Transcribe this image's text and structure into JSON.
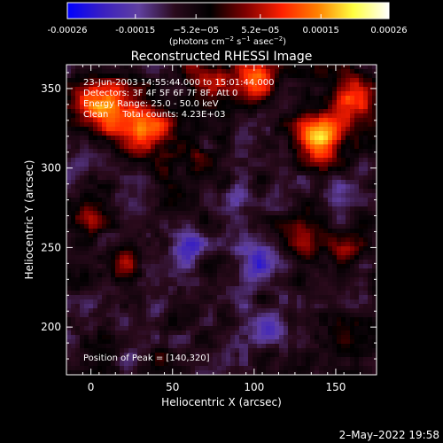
{
  "colorbar": {
    "tick_labels": [
      "-0.00026",
      "-0.00015",
      "−5.2e−05",
      "5.2e−05",
      "0.00015",
      "0.00026"
    ],
    "tick_values": [
      -0.00026,
      -0.00015,
      -5.2e-05,
      5.2e-05,
      0.00015,
      0.00026
    ],
    "range": [
      -0.00026,
      0.00026
    ],
    "units_base": "(photons cm",
    "units_exp1": "−2",
    "units_mid": " s",
    "units_exp2": "−1",
    "units_mid2": " asec",
    "units_exp3": "−2",
    "units_end": ")"
  },
  "chart_data": {
    "type": "heatmap",
    "title": "Reconstructed RHESSI Image",
    "xlabel": "Heliocentric X (arcsec)",
    "ylabel": "Heliocentric Y (arcsec)",
    "xlim": [
      -15,
      175
    ],
    "ylim": [
      170,
      365
    ],
    "x_ticks": [
      0,
      50,
      100,
      150
    ],
    "y_ticks": [
      200,
      250,
      300,
      350
    ],
    "x_tick_labels": [
      "0",
      "50",
      "100",
      "150"
    ],
    "y_tick_labels": [
      "200",
      "250",
      "300",
      "350"
    ],
    "annotations": [
      "23-Jun-2003 14:55:44.000 to 15:01:44.000",
      "Detectors: 3F 4F 5F 6F 7F 8F, Att 0",
      "Energy Range: 25.0 - 50.0 keV",
      "Clean     Total counts: 4.23E+03"
    ],
    "peak_label": "Position of Peak = [140,320]",
    "peak": [
      140,
      320
    ],
    "colormap": [
      "#0000ff",
      "#3a20c0",
      "#6040a0",
      "#2a0a1c",
      "#000000",
      "#800000",
      "#ff2000",
      "#ff8000",
      "#ffff40",
      "#ffffff"
    ],
    "sources": [
      {
        "x": 140,
        "y": 320,
        "value": 0.00026,
        "radius": 14
      },
      {
        "x": 30,
        "y": 325,
        "value": 0.00022,
        "radius": 18
      },
      {
        "x": 100,
        "y": 355,
        "value": 0.0002,
        "radius": 14
      },
      {
        "x": 5,
        "y": 340,
        "value": 0.00018,
        "radius": 16
      },
      {
        "x": 160,
        "y": 345,
        "value": 0.00017,
        "radius": 14
      },
      {
        "x": 70,
        "y": 355,
        "value": 0.00015,
        "radius": 12
      },
      {
        "x": 130,
        "y": 252,
        "value": 0.00012,
        "radius": 12
      },
      {
        "x": 155,
        "y": 250,
        "value": 0.00011,
        "radius": 10
      },
      {
        "x": 20,
        "y": 240,
        "value": 0.0001,
        "radius": 10
      },
      {
        "x": 0,
        "y": 270,
        "value": 9e-05,
        "radius": 9
      },
      {
        "x": 65,
        "y": 305,
        "value": 8e-05,
        "radius": 10
      },
      {
        "x": 155,
        "y": 190,
        "value": 7e-05,
        "radius": 8
      },
      {
        "x": 40,
        "y": 180,
        "value": 6e-05,
        "radius": 8
      },
      {
        "x": 100,
        "y": 240,
        "value": -0.00012,
        "radius": 12
      },
      {
        "x": 60,
        "y": 250,
        "value": -0.0001,
        "radius": 10
      },
      {
        "x": 110,
        "y": 200,
        "value": -0.00011,
        "radius": 10
      },
      {
        "x": 150,
        "y": 285,
        "value": -9e-05,
        "radius": 10
      },
      {
        "x": 90,
        "y": 280,
        "value": -0.0001,
        "radius": 10
      },
      {
        "x": 40,
        "y": 210,
        "value": -8e-05,
        "radius": 9
      }
    ]
  },
  "timestamp": "2–May–2022 19:58"
}
